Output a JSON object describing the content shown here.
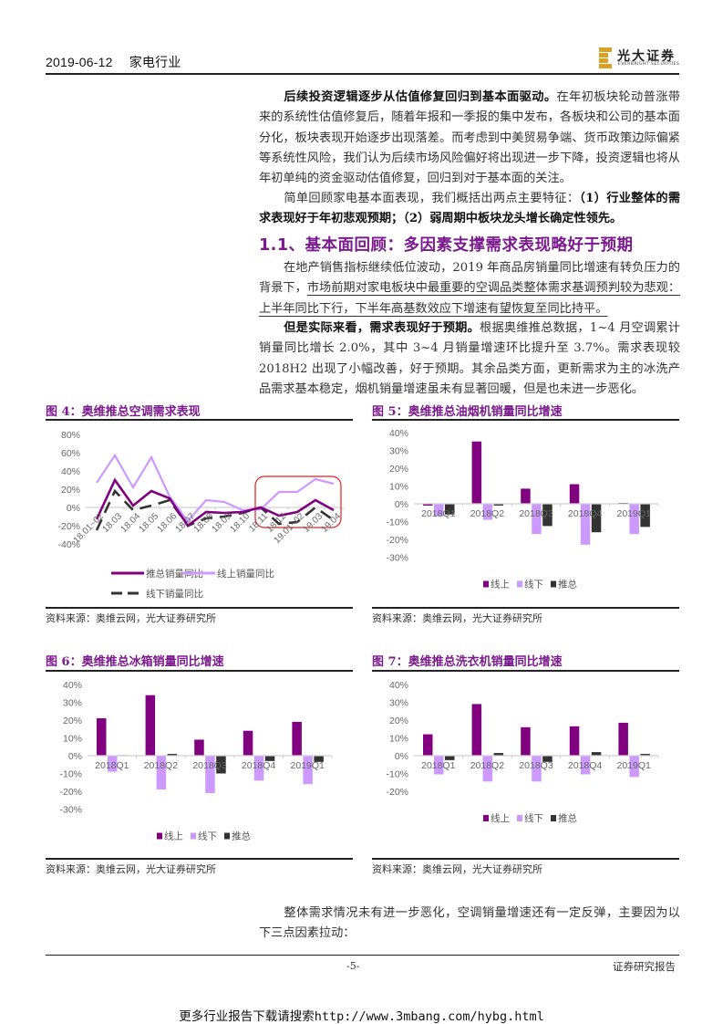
{
  "header": {
    "date": "2019-06-12",
    "industry": "家电行业",
    "logo": {
      "cn": "光大证券",
      "en": "EVERBRIGHT SECURITIES",
      "color": "#d9a224"
    }
  },
  "paragraphs": {
    "p1": {
      "bold": "后续投资逻辑逐步从估值修复回归到基本面驱动。",
      "text": "在年初板块轮动普涨带来的系统性估值修复后，随着年报和一季报的集中发布，各板块和公司的基本面分化，板块表现开始逐步出现落差。而考虑到中美贸易争端、货币政策边际偏紧等系统性风险，我们认为后续市场风险偏好将出现进一步下降，投资逻辑也将从年初单纯的资金驱动估值修复，回归到对于基本面的关注。"
    },
    "p2": {
      "text": "简单回顾家电基本面表现，我们概括出两点主要特征：",
      "bold": "（1）行业整体的需求表现好于年初悲观预期；（2）弱周期中板块龙头增长确定性领先。"
    },
    "section_title": "1.1、基本面回顾：多因素支撑需求表现略好于预期",
    "p3": {
      "text": "在地产销售指标继续低位波动，2019 年商品房销量同比增速有转负压力的背景下，",
      "underlined": "市场前期对家电板块中最重要的空调品类整体需求基调预判较为悲观：上半年同比下行，下半年高基数效应下增速有望恢复至同比持平。"
    },
    "p4": {
      "bold": "但是实际来看，需求表现好于预期。",
      "text": "根据奥维推总数据，1~4 月空调累计销量同比增长 2.0%，其中 3~4 月销量增速环比提升至 3.7%。需求表现较 2018H2 出现了小幅改善，好于预期。其余品类方面，更新需求为主的冰洗产品需求基本稳定，烟机销量增速虽未有显著回暖，但是也未进一步恶化。"
    },
    "p5": {
      "text": "整体需求情况未有进一步恶化，空调销量增速还有一定反弹，主要因为以下三点因素拉动："
    }
  },
  "figures": {
    "fig4": {
      "title": "图 4：奥维推总空调需求表现",
      "source": "资料来源：奥维云网，光大证券研究所"
    },
    "fig5": {
      "title": "图 5：奥维推总油烟机销量同比增速",
      "source": "资料来源：奥维云网，光大证券研究所"
    },
    "fig6": {
      "title": "图 6：奥维推总冰箱销量同比增速",
      "source": "资料来源：奥维云网，光大证券研究所"
    },
    "fig7": {
      "title": "图 7：奥维推总洗衣机销量同比增速",
      "source": "资料来源：奥维云网，光大证券研究所"
    }
  },
  "colors": {
    "accent_purple": "#7a1a8c",
    "online": "#800080",
    "offline_light": "#cc99ff",
    "total_dark": "#333333",
    "highlight_box": "#e02020"
  },
  "chart_data": [
    {
      "id": "fig4",
      "type": "line",
      "title": "奥维推总空调需求表现",
      "xlabel": "",
      "ylabel": "",
      "ylim": [
        -40,
        80
      ],
      "yticks": [
        "80%",
        "60%",
        "40%",
        "20%",
        "0%",
        "-20%",
        "-40%"
      ],
      "grid": false,
      "legend_position": "bottom",
      "categories": [
        "18.01~02",
        "18.03",
        "18.04",
        "18.05",
        "18.06",
        "18.07",
        "18.08",
        "18.09",
        "18.10",
        "18.11",
        "18.12",
        "19.01~02",
        "19.03",
        "19.04"
      ],
      "series": [
        {
          "name": "推总销量同比",
          "color": "#800080",
          "style": "solid",
          "values": [
            -13,
            30,
            2,
            18,
            10,
            -20,
            -5,
            -6,
            -5,
            0,
            -9,
            -5,
            8,
            -3
          ]
        },
        {
          "name": "线上销量同比",
          "color": "#cc99ff",
          "style": "solid",
          "values": [
            27,
            57,
            22,
            55,
            12,
            -15,
            8,
            6,
            -3,
            -2,
            17,
            17,
            31,
            26
          ]
        },
        {
          "name": "线下销量同比",
          "color": "#333333",
          "style": "dashed",
          "values": [
            -25,
            18,
            -3,
            2,
            8,
            -20,
            -12,
            -10,
            -6,
            0,
            -18,
            -16,
            0,
            -14
          ]
        }
      ],
      "annotations": [
        {
          "type": "rounded-rect",
          "color": "#e02020",
          "from": "18.11",
          "to": "19.04"
        }
      ]
    },
    {
      "id": "fig5",
      "type": "bar",
      "title": "奥维推总油烟机销量同比增速",
      "ylim": [
        -30,
        40
      ],
      "yticks": [
        "40%",
        "30%",
        "20%",
        "10%",
        "0%",
        "-10%",
        "-20%",
        "-30%"
      ],
      "legend_position": "bottom",
      "categories": [
        "2018Q1",
        "2018Q2",
        "2018Q3",
        "2018Q4",
        "2019Q1"
      ],
      "series": [
        {
          "name": "线上",
          "color": "#800080",
          "values": [
            -1,
            35,
            8.5,
            11,
            0.5
          ]
        },
        {
          "name": "线下",
          "color": "#cc99ff",
          "values": [
            -7,
            -9,
            -17,
            -23,
            -17
          ]
        },
        {
          "name": "推总",
          "color": "#333333",
          "values": [
            -6,
            -1,
            -12.5,
            -16,
            -13
          ]
        }
      ]
    },
    {
      "id": "fig6",
      "type": "bar",
      "title": "奥维推总冰箱销量同比增速",
      "ylim": [
        -30,
        40
      ],
      "yticks": [
        "40%",
        "30%",
        "20%",
        "10%",
        "0%",
        "-10%",
        "-20%",
        "-30%"
      ],
      "legend_position": "bottom",
      "categories": [
        "2018Q1",
        "2018Q2",
        "2018Q3",
        "2018Q4",
        "2019Q1"
      ],
      "series": [
        {
          "name": "线上",
          "color": "#800080",
          "values": [
            21,
            34,
            9,
            14,
            19
          ]
        },
        {
          "name": "线下",
          "color": "#cc99ff",
          "values": [
            -9,
            -19,
            -21,
            -14,
            -16
          ]
        },
        {
          "name": "推总",
          "color": "#333333",
          "values": [
            0.3,
            1,
            -10,
            -3,
            -3.5
          ]
        }
      ]
    },
    {
      "id": "fig7",
      "type": "bar",
      "title": "奥维推总洗衣机销量同比增速",
      "ylim": [
        -20,
        40
      ],
      "yticks": [
        "40%",
        "30%",
        "20%",
        "10%",
        "0%",
        "-10%",
        "-20%"
      ],
      "legend_position": "bottom",
      "categories": [
        "2018Q1",
        "2018Q2",
        "2018Q3",
        "2018Q4",
        "2019Q1"
      ],
      "series": [
        {
          "name": "线上",
          "color": "#800080",
          "values": [
            12,
            29,
            16,
            16.5,
            18.5
          ]
        },
        {
          "name": "线下",
          "color": "#cc99ff",
          "values": [
            -10.5,
            -14.5,
            -14.5,
            -10.5,
            -12
          ]
        },
        {
          "name": "推总",
          "color": "#333333",
          "values": [
            -2.5,
            1.5,
            -3.5,
            2,
            1
          ]
        }
      ]
    }
  ],
  "footer": {
    "page_number": "-5-",
    "label": "证券研究报告",
    "banner": "更多行业报告下载请搜索http://www.3mbang.com/hybg.html"
  }
}
